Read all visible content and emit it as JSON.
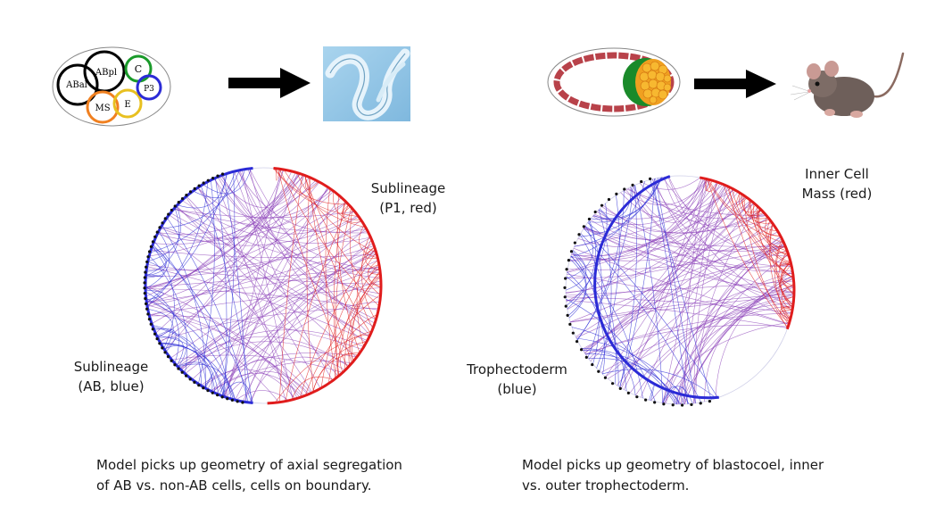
{
  "worm_embryo": {
    "cells": [
      "ABal",
      "ABpl",
      "C",
      "P3",
      "MS",
      "E"
    ]
  },
  "mouse_embryo": {},
  "left_graph": {
    "label_top": [
      "Sublineage",
      "(P1, red)"
    ],
    "label_bottom": [
      "Sublineage",
      "(AB, blue)"
    ]
  },
  "right_graph": {
    "label_top": [
      "Inner Cell",
      "Mass (red)"
    ],
    "label_bottom": [
      "Trophectoderm",
      "(blue)"
    ]
  },
  "captions": {
    "left": [
      "Model picks up geometry of axial segregation",
      "of AB vs. non-AB cells, cells on boundary."
    ],
    "right": [
      "Model picks up geometry of blastocoel, inner",
      "vs. outer trophectoderm."
    ]
  },
  "colors": {
    "blue": "#2b2bd6",
    "red": "#e01c1c",
    "purple": "#8a3fb8",
    "green": "#1a9a2a",
    "orange": "#f08020",
    "yellow": "#e8c020",
    "rim": "#b8424a"
  }
}
